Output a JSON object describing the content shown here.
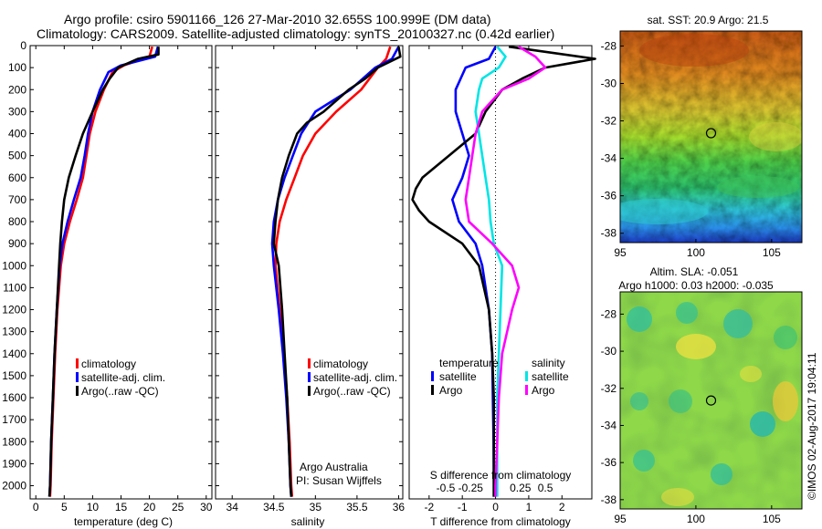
{
  "header": {
    "line1": "Argo profile: csiro 5901166_126 27-Mar-2010 32.655S 100.999E (DM data)",
    "line2": "Climatology: CARS2009. Satellite-adjusted climatology: synTS_20100327.nc (0.42d earlier)"
  },
  "credit": "©IMOS 02-Aug-2017 19:04:11",
  "colors": {
    "climatology": "#ff0000",
    "satellite": "#0000ff",
    "argo": "#000000",
    "sat_salinity": "#00e5e5",
    "argo_salinity": "#ff00ff"
  },
  "chart_data": [
    {
      "id": "temperature",
      "type": "line",
      "xlabel": "temperature (deg C)",
      "ylabel": "",
      "xlim": [
        -1,
        31
      ],
      "ylim": [
        2060,
        0
      ],
      "xticks": [
        "0",
        "5",
        "10",
        "15",
        "20",
        "25",
        "30"
      ],
      "yticks": [
        "0",
        "100",
        "200",
        "300",
        "400",
        "500",
        "600",
        "700",
        "800",
        "900",
        "1000",
        "1100",
        "1200",
        "1300",
        "1400",
        "1500",
        "1600",
        "1700",
        "1800",
        "1900",
        "2000"
      ],
      "legend": [
        "climatology",
        "satellite-adj. clim.",
        "Argo(..raw -QC)"
      ],
      "series": [
        {
          "name": "climatology",
          "color": "#ff0000",
          "y": [
            5,
            50,
            90,
            120,
            200,
            300,
            400,
            500,
            600,
            700,
            800,
            900,
            1000,
            1200,
            1400,
            1600,
            1800,
            2000,
            2050
          ],
          "x": [
            20.5,
            20.0,
            15.5,
            13.5,
            12.0,
            10.5,
            9.5,
            8.9,
            8.3,
            7.2,
            6.0,
            5.0,
            4.4,
            3.8,
            3.4,
            3.1,
            2.8,
            2.6,
            2.5
          ]
        },
        {
          "name": "satellite-adj. clim.",
          "color": "#0000ff",
          "y": [
            5,
            50,
            90,
            120,
            200,
            300,
            400,
            500,
            600,
            700,
            800,
            900,
            1000,
            1200,
            1400,
            1600,
            1800,
            2000,
            2050
          ],
          "x": [
            21.5,
            21.0,
            15.0,
            12.8,
            11.3,
            10.0,
            9.2,
            8.6,
            7.9,
            6.7,
            5.6,
            4.7,
            4.2,
            3.7,
            3.3,
            3.0,
            2.7,
            2.5,
            2.4
          ]
        },
        {
          "name": "Argo(..raw -QC)",
          "color": "#000000",
          "y": [
            5,
            40,
            60,
            100,
            150,
            200,
            300,
            400,
            500,
            600,
            700,
            800,
            900,
            1000,
            1200,
            1400,
            1600,
            1800,
            2000,
            2050
          ],
          "x": [
            21.6,
            21.6,
            18.0,
            14.5,
            13.0,
            11.8,
            10.0,
            8.3,
            7.0,
            5.8,
            5.0,
            4.6,
            4.3,
            4.1,
            3.7,
            3.3,
            3.0,
            2.7,
            2.5,
            2.4
          ]
        }
      ]
    },
    {
      "id": "salinity",
      "type": "line",
      "xlabel": "salinity",
      "ylabel": "",
      "xlim": [
        33.8,
        36.05
      ],
      "ylim": [
        2060,
        0
      ],
      "xticks": [
        "34",
        "34.5",
        "35",
        "35.5",
        "36"
      ],
      "legend": [
        "climatology",
        "satellite-adj. clim.",
        "Argo(..raw -QC)"
      ],
      "annotations": [
        "Argo Australia",
        "PI: Susan Wijffels"
      ],
      "series": [
        {
          "name": "climatology",
          "color": "#ff0000",
          "y": [
            5,
            60,
            100,
            200,
            300,
            400,
            500,
            600,
            700,
            800,
            900,
            1000,
            1200,
            1400,
            1600,
            1800,
            2000,
            2050
          ],
          "x": [
            35.9,
            35.85,
            35.75,
            35.55,
            35.25,
            35.0,
            34.85,
            34.75,
            34.65,
            34.57,
            34.53,
            34.52,
            34.57,
            34.62,
            34.66,
            34.69,
            34.71,
            34.72
          ]
        },
        {
          "name": "satellite-adj. clim.",
          "color": "#0000ff",
          "y": [
            5,
            60,
            100,
            200,
            300,
            400,
            500,
            600,
            700,
            800,
            900,
            1000,
            1200,
            1400,
            1600,
            1800,
            2000,
            2050
          ],
          "x": [
            36.0,
            35.92,
            35.72,
            35.42,
            35.0,
            34.83,
            34.73,
            34.63,
            34.55,
            34.5,
            34.48,
            34.5,
            34.56,
            34.61,
            34.65,
            34.68,
            34.7,
            34.71
          ]
        },
        {
          "name": "Argo(..raw -QC)",
          "color": "#000000",
          "y": [
            5,
            50,
            100,
            150,
            200,
            300,
            350,
            400,
            500,
            600,
            700,
            800,
            900,
            1000,
            1200,
            1400,
            1600,
            1800,
            2000,
            2050
          ],
          "x": [
            36.0,
            36.02,
            35.75,
            35.6,
            35.4,
            35.1,
            34.9,
            34.78,
            34.68,
            34.6,
            34.55,
            34.52,
            34.5,
            34.56,
            34.6,
            34.63,
            34.66,
            34.68,
            34.7,
            34.71
          ]
        }
      ]
    },
    {
      "id": "difference",
      "type": "line",
      "xlabel": "T difference from climatology",
      "xlabel2": "S difference from climatology",
      "xlim": [
        -2.6,
        2.9
      ],
      "ylim": [
        2060,
        0
      ],
      "xticks": [
        "-2",
        "-1",
        "0",
        "1",
        "2"
      ],
      "xticks2": [
        "-0.5",
        "-0.25",
        "0",
        "0.25",
        "0.5"
      ],
      "legend_headers": [
        "temperature",
        "salinity"
      ],
      "legend": [
        "satellite",
        "Argo",
        "satellite",
        "Argo"
      ],
      "series": [
        {
          "name": "satellite",
          "group": "temperature",
          "color": "#0000ff",
          "y": [
            5,
            60,
            100,
            200,
            300,
            400,
            500,
            600,
            700,
            800,
            900,
            1000,
            1200,
            1400,
            1600,
            1800,
            2000,
            2050
          ],
          "x": [
            0.0,
            -0.2,
            -0.9,
            -1.2,
            -1.2,
            -1.0,
            -0.8,
            -1.0,
            -1.3,
            -1.1,
            -0.6,
            -0.4,
            -0.2,
            -0.1,
            -0.08,
            -0.06,
            -0.05,
            -0.05
          ]
        },
        {
          "name": "Argo",
          "group": "temperature",
          "color": "#000000",
          "y": [
            5,
            60,
            100,
            150,
            200,
            300,
            400,
            500,
            600,
            650,
            700,
            750,
            800,
            900,
            1000,
            1200,
            1400,
            1600,
            1800,
            2000,
            2050
          ],
          "x": [
            0.4,
            3.0,
            1.5,
            0.8,
            0.2,
            -0.3,
            -0.6,
            -1.4,
            -2.2,
            -2.4,
            -2.5,
            -2.3,
            -2.0,
            -1.0,
            -0.5,
            -0.2,
            -0.1,
            -0.05,
            -0.05,
            -0.05,
            -0.05
          ]
        },
        {
          "name": "satellite",
          "group": "salinity",
          "color": "#00e5e5",
          "y": [
            5,
            50,
            100,
            150,
            200,
            300,
            400,
            500,
            600,
            700,
            800,
            900,
            1000,
            1200,
            1400,
            1600,
            1800,
            2000,
            2050
          ],
          "x": [
            0.05,
            0.3,
            0.1,
            -0.4,
            -0.5,
            -0.6,
            -0.5,
            -0.4,
            -0.3,
            -0.2,
            -0.15,
            -0.05,
            0.2,
            0.15,
            0.1,
            0.05,
            0.05,
            0.05,
            0.05
          ]
        },
        {
          "name": "Argo",
          "group": "salinity",
          "color": "#ff00ff",
          "y": [
            5,
            50,
            100,
            150,
            200,
            300,
            400,
            500,
            600,
            700,
            800,
            900,
            1000,
            1100,
            1200,
            1400,
            1600,
            1800,
            2000,
            2050
          ],
          "x": [
            0.7,
            1.2,
            1.5,
            1.0,
            0.2,
            -0.4,
            -0.6,
            -0.7,
            -0.8,
            -0.9,
            -0.8,
            -0.1,
            0.5,
            0.7,
            0.5,
            0.2,
            0.1,
            0.05,
            0.0,
            0.0
          ]
        }
      ]
    },
    {
      "id": "sst_map",
      "type": "heatmap",
      "title": "sat. SST: 20.9 Argo: 21.5",
      "xlim": [
        95,
        107
      ],
      "ylim": [
        -38.5,
        -27.2
      ],
      "xticks": [
        "95",
        "100",
        "105"
      ],
      "yticks": [
        "-28",
        "-30",
        "-32",
        "-34",
        "-36",
        "-38"
      ],
      "marker": {
        "lon": 101.0,
        "lat": -32.655
      }
    },
    {
      "id": "sla_map",
      "type": "heatmap",
      "title": "Altim. SLA: -0.051",
      "subtitle": "Argo h1000: 0.03 h2000: -0.035",
      "xlim": [
        95,
        107
      ],
      "ylim": [
        -38.5,
        -26.8
      ],
      "xticks": [
        "95",
        "100",
        "105"
      ],
      "yticks": [
        "-28",
        "-30",
        "-32",
        "-34",
        "-36",
        "-38"
      ],
      "marker": {
        "lon": 101.0,
        "lat": -32.655
      }
    }
  ]
}
